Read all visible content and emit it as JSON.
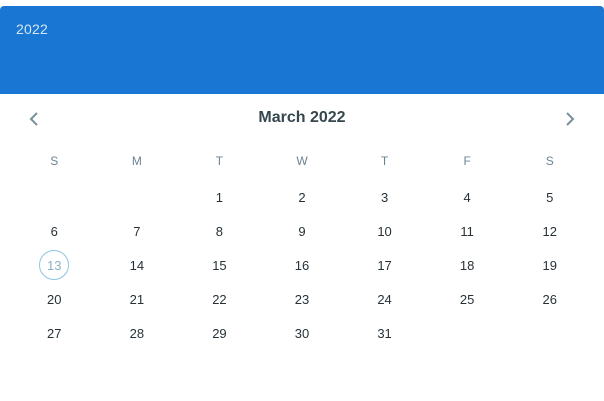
{
  "header": {
    "year": "2022"
  },
  "navigation": {
    "title": "March 2022",
    "prev_icon": "chevron-left-icon",
    "next_icon": "chevron-right-icon"
  },
  "weekdays": [
    "S",
    "M",
    "T",
    "W",
    "T",
    "F",
    "S"
  ],
  "days": [
    "",
    "",
    "1",
    "2",
    "3",
    "4",
    "5",
    "6",
    "7",
    "8",
    "9",
    "10",
    "11",
    "12",
    "13",
    "14",
    "15",
    "16",
    "17",
    "18",
    "19",
    "20",
    "21",
    "22",
    "23",
    "24",
    "25",
    "26",
    "27",
    "28",
    "29",
    "30",
    "31"
  ],
  "today": "13",
  "colors": {
    "header_bg": "#1976d2",
    "today_ring": "#8cc6e0",
    "text": "#263238"
  }
}
